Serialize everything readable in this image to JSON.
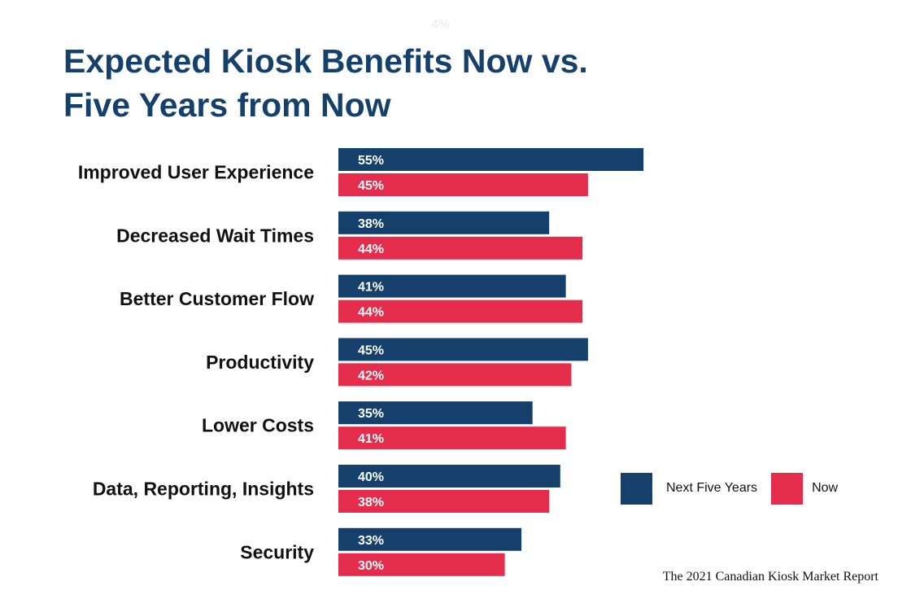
{
  "ghost_text": "4%",
  "title_line1": "Expected Kiosk Benefits Now vs.",
  "title_line2": "Five Years from Now",
  "source": "The 2021 Canadian Kiosk Market Report",
  "colors": {
    "next_five_years": "#15406b",
    "now": "#e42d4d"
  },
  "chart_data": {
    "type": "bar",
    "orientation": "horizontal",
    "categories": [
      "Improved User Experience",
      "Decreased Wait Times",
      "Better Customer Flow",
      "Productivity",
      "Lower Costs",
      "Data, Reporting, Insights",
      "Security"
    ],
    "series": [
      {
        "name": "Next Five Years",
        "color": "#15406b",
        "values": [
          55,
          38,
          41,
          45,
          35,
          40,
          33
        ],
        "labels": [
          "55%",
          "38%",
          "41%",
          "45%",
          "35%",
          "40%",
          "33%"
        ]
      },
      {
        "name": "Now",
        "color": "#e42d4d",
        "values": [
          45,
          44,
          44,
          42,
          41,
          38,
          30
        ],
        "labels": [
          "45%",
          "44%",
          "44%",
          "42%",
          "41%",
          "38%",
          "30%"
        ]
      }
    ],
    "title": "Expected Kiosk Benefits Now vs. Five Years from Now",
    "legend_position": "right",
    "grid": false
  }
}
